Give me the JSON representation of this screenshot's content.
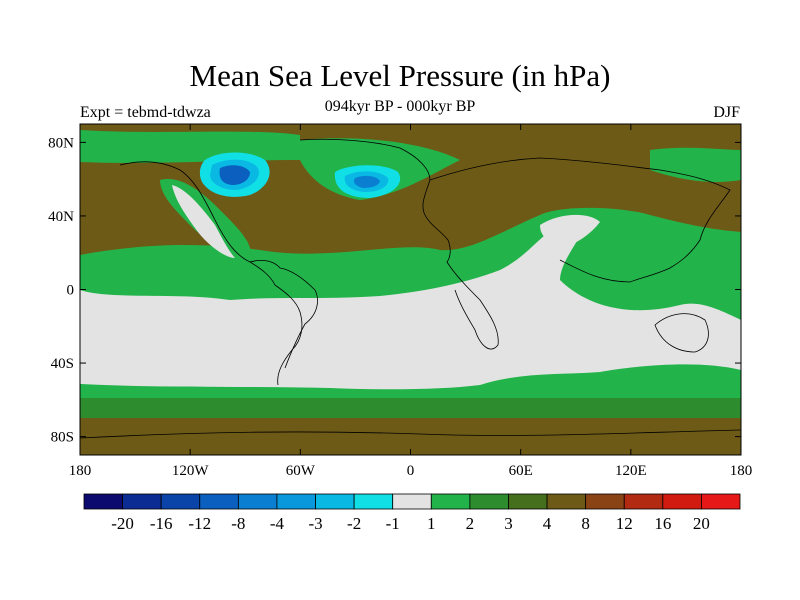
{
  "figure": {
    "title": "Mean Sea Level Pressure (in hPa)",
    "subtitle": "094kyr BP - 000kyr BP",
    "experiment": "Expt = tebmd-tdwza",
    "season": "DJF"
  },
  "map": {
    "projection": "cylindrical equidistant",
    "lon_range": [
      -180,
      180
    ],
    "lat_range": [
      -90,
      90
    ],
    "x_ticks": [
      {
        "value": -180,
        "label": "180"
      },
      {
        "value": -120,
        "label": "120W"
      },
      {
        "value": -60,
        "label": "60W"
      },
      {
        "value": 0,
        "label": "0"
      },
      {
        "value": 60,
        "label": "60E"
      },
      {
        "value": 120,
        "label": "120E"
      },
      {
        "value": 180,
        "label": "180"
      }
    ],
    "y_ticks": [
      {
        "value": 80,
        "label": "80N"
      },
      {
        "value": 40,
        "label": "40N"
      },
      {
        "value": 0,
        "label": "0"
      },
      {
        "value": -40,
        "label": "40S"
      },
      {
        "value": -80,
        "label": "80S"
      }
    ],
    "coastline_color": "#000000"
  },
  "colorbar": {
    "levels": [
      "-20",
      "-16",
      "-12",
      "-8",
      "-4",
      "-3",
      "-2",
      "-1",
      "1",
      "2",
      "3",
      "4",
      "8",
      "12",
      "16",
      "20"
    ],
    "colors": [
      "#0c0a6e",
      "#0a2c93",
      "#0a44a8",
      "#0a5fbf",
      "#0a7ed0",
      "#0a98dc",
      "#0ab8e4",
      "#10dfe6",
      "#e3e3e3",
      "#22b44a",
      "#2d8c2e",
      "#456f1c",
      "#6e5a17",
      "#8a4315",
      "#b22a12",
      "#d21b10",
      "#e61818"
    ]
  }
}
